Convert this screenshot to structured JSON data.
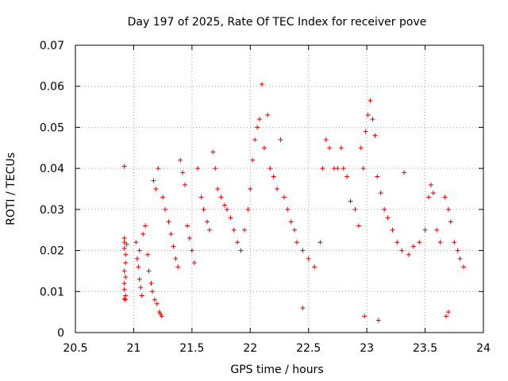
{
  "chart_data": {
    "type": "scatter",
    "title": "Day 197 of 2025, Rate Of TEC Index for receiver pove",
    "xlabel": "GPS time / hours",
    "ylabel": "ROTI / TECUs",
    "xlim": [
      20.5,
      24
    ],
    "ylim": [
      0,
      0.07
    ],
    "x_ticks": [
      20.5,
      21,
      21.5,
      22,
      22.5,
      23,
      23.5,
      24
    ],
    "x_tick_labels": [
      "20.5",
      "21",
      "21.5",
      "22",
      "22.5",
      "23",
      "23.5",
      "24"
    ],
    "y_ticks": [
      0,
      0.01,
      0.02,
      0.03,
      0.04,
      0.05,
      0.06,
      0.07
    ],
    "y_tick_labels": [
      "0",
      "0.01",
      "0.02",
      "0.03",
      "0.04",
      "0.05",
      "0.06",
      "0.07"
    ],
    "grid": true,
    "marker": "plus",
    "color": "#e00000",
    "points": [
      [
        20.92,
        0.0405
      ],
      [
        20.92,
        0.023
      ],
      [
        20.92,
        0.022
      ],
      [
        20.92,
        0.0205
      ],
      [
        20.93,
        0.019
      ],
      [
        20.93,
        0.017
      ],
      [
        20.92,
        0.015
      ],
      [
        20.93,
        0.0135
      ],
      [
        20.92,
        0.012
      ],
      [
        20.92,
        0.0105
      ],
      [
        20.93,
        0.009
      ],
      [
        20.92,
        0.0082
      ],
      [
        20.93,
        0.008
      ],
      [
        20.94,
        0.0215
      ],
      [
        21.02,
        0.022
      ],
      [
        21.03,
        0.018
      ],
      [
        21.04,
        0.016
      ],
      [
        21.05,
        0.013
      ],
      [
        21.06,
        0.011
      ],
      [
        21.07,
        0.009
      ],
      [
        21.05,
        0.02
      ],
      [
        21.08,
        0.024
      ],
      [
        21.1,
        0.026
      ],
      [
        21.12,
        0.019
      ],
      [
        21.13,
        0.015
      ],
      [
        21.15,
        0.012
      ],
      [
        21.16,
        0.01
      ],
      [
        21.18,
        0.008
      ],
      [
        21.2,
        0.007
      ],
      [
        21.22,
        0.005
      ],
      [
        21.23,
        0.0045
      ],
      [
        21.24,
        0.004
      ],
      [
        21.17,
        0.037
      ],
      [
        21.19,
        0.035
      ],
      [
        21.21,
        0.04
      ],
      [
        21.25,
        0.033
      ],
      [
        21.27,
        0.03
      ],
      [
        21.3,
        0.027
      ],
      [
        21.32,
        0.024
      ],
      [
        21.34,
        0.021
      ],
      [
        21.36,
        0.018
      ],
      [
        21.38,
        0.016
      ],
      [
        21.4,
        0.042
      ],
      [
        21.42,
        0.039
      ],
      [
        21.44,
        0.036
      ],
      [
        21.46,
        0.026
      ],
      [
        21.48,
        0.023
      ],
      [
        21.5,
        0.02
      ],
      [
        21.52,
        0.017
      ],
      [
        21.55,
        0.04
      ],
      [
        21.58,
        0.033
      ],
      [
        21.6,
        0.03
      ],
      [
        21.63,
        0.027
      ],
      [
        21.65,
        0.025
      ],
      [
        21.68,
        0.044
      ],
      [
        21.7,
        0.04
      ],
      [
        21.72,
        0.035
      ],
      [
        21.75,
        0.033
      ],
      [
        21.78,
        0.031
      ],
      [
        21.8,
        0.03
      ],
      [
        21.83,
        0.028
      ],
      [
        21.86,
        0.025
      ],
      [
        21.89,
        0.022
      ],
      [
        21.92,
        0.02
      ],
      [
        21.95,
        0.025
      ],
      [
        21.98,
        0.03
      ],
      [
        22.0,
        0.035
      ],
      [
        22.02,
        0.042
      ],
      [
        22.04,
        0.047
      ],
      [
        22.06,
        0.05
      ],
      [
        22.08,
        0.052
      ],
      [
        22.1,
        0.0605
      ],
      [
        22.12,
        0.045
      ],
      [
        22.15,
        0.053
      ],
      [
        22.17,
        0.04
      ],
      [
        22.2,
        0.038
      ],
      [
        22.23,
        0.035
      ],
      [
        22.26,
        0.047
      ],
      [
        22.29,
        0.033
      ],
      [
        22.32,
        0.03
      ],
      [
        22.35,
        0.027
      ],
      [
        22.38,
        0.025
      ],
      [
        22.4,
        0.022
      ],
      [
        22.45,
        0.02
      ],
      [
        22.5,
        0.018
      ],
      [
        22.55,
        0.016
      ],
      [
        22.6,
        0.022
      ],
      [
        22.62,
        0.04
      ],
      [
        22.65,
        0.047
      ],
      [
        22.68,
        0.045
      ],
      [
        22.72,
        0.04
      ],
      [
        22.75,
        0.04
      ],
      [
        22.78,
        0.045
      ],
      [
        22.8,
        0.04
      ],
      [
        22.83,
        0.038
      ],
      [
        22.86,
        0.032
      ],
      [
        22.9,
        0.03
      ],
      [
        22.93,
        0.026
      ],
      [
        22.95,
        0.045
      ],
      [
        22.97,
        0.04
      ],
      [
        22.99,
        0.049
      ],
      [
        23.01,
        0.053
      ],
      [
        23.03,
        0.0565
      ],
      [
        23.05,
        0.052
      ],
      [
        23.07,
        0.048
      ],
      [
        23.09,
        0.038
      ],
      [
        23.12,
        0.034
      ],
      [
        23.15,
        0.03
      ],
      [
        23.18,
        0.028
      ],
      [
        23.22,
        0.025
      ],
      [
        23.26,
        0.022
      ],
      [
        23.3,
        0.02
      ],
      [
        23.32,
        0.039
      ],
      [
        23.36,
        0.019
      ],
      [
        23.4,
        0.021
      ],
      [
        23.45,
        0.022
      ],
      [
        23.5,
        0.025
      ],
      [
        23.53,
        0.033
      ],
      [
        23.55,
        0.036
      ],
      [
        23.57,
        0.034
      ],
      [
        23.6,
        0.025
      ],
      [
        23.63,
        0.022
      ],
      [
        23.67,
        0.033
      ],
      [
        23.7,
        0.03
      ],
      [
        23.72,
        0.027
      ],
      [
        23.75,
        0.022
      ],
      [
        23.78,
        0.02
      ],
      [
        23.8,
        0.018
      ],
      [
        23.83,
        0.016
      ],
      [
        23.7,
        0.005
      ],
      [
        23.68,
        0.004
      ],
      [
        23.1,
        0.003
      ],
      [
        22.98,
        0.004
      ],
      [
        22.45,
        0.006
      ]
    ]
  }
}
